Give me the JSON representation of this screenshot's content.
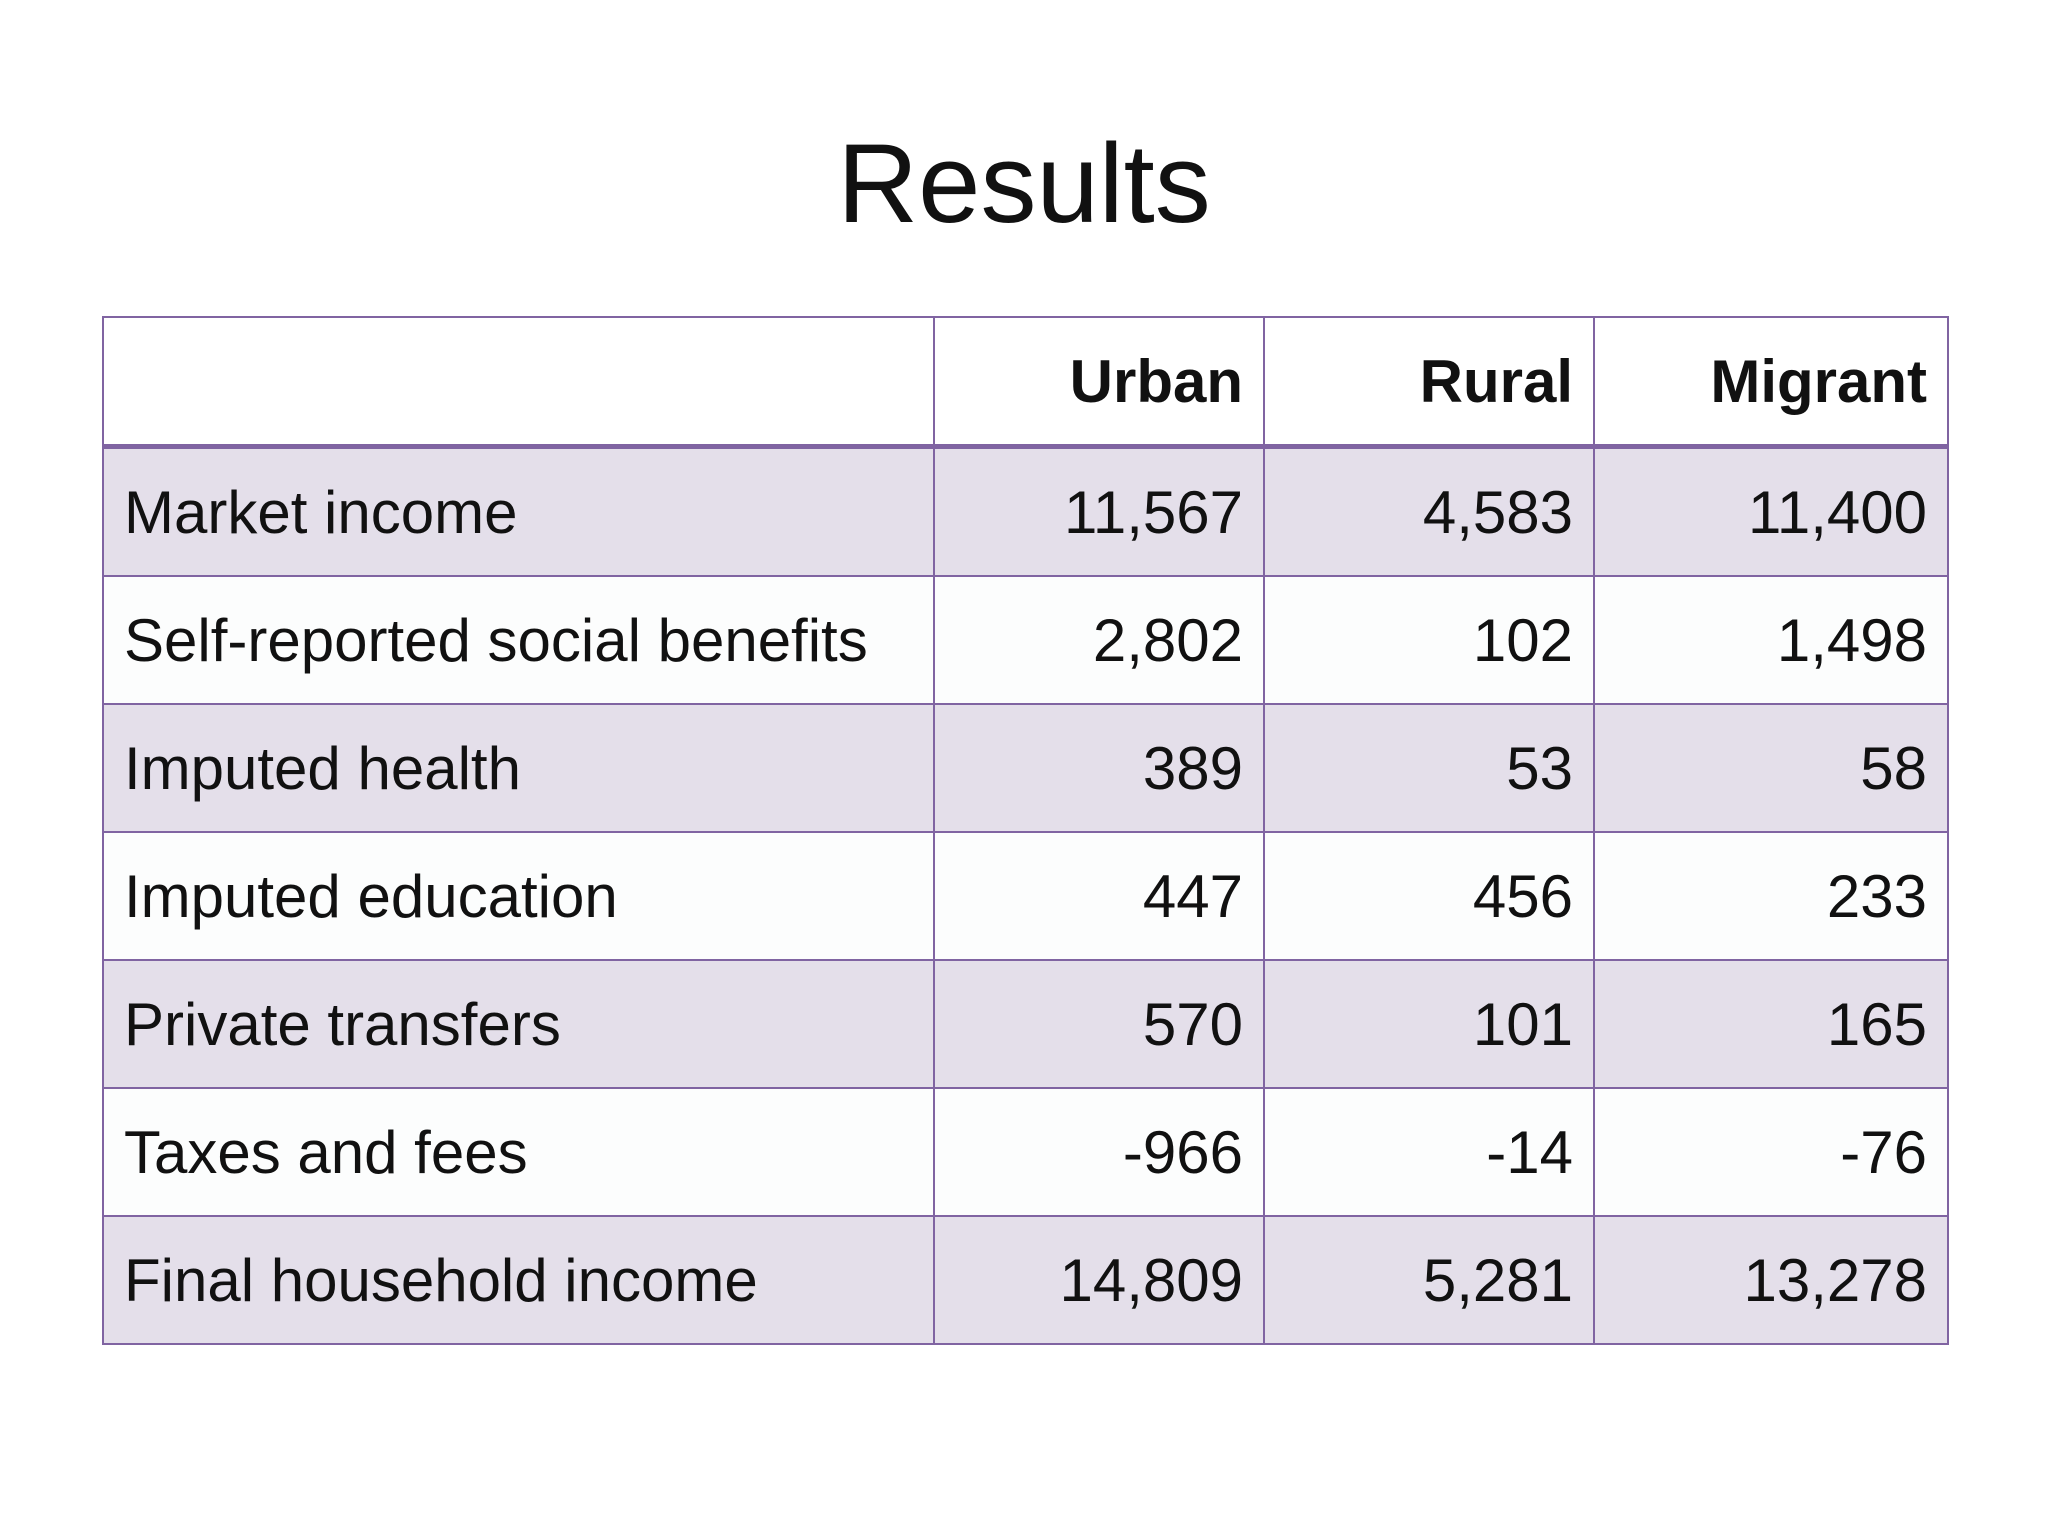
{
  "slide": {
    "title": "Results"
  },
  "table": {
    "headers": [
      "",
      "Urban",
      "Rural",
      "Migrant"
    ],
    "rows": [
      {
        "label": "Market income",
        "urban": "11,567",
        "rural": "4,583",
        "migrant": "11,400"
      },
      {
        "label": "Self-reported social benefits",
        "urban": "2,802",
        "rural": "102",
        "migrant": "1,498"
      },
      {
        "label": "Imputed health",
        "urban": "389",
        "rural": "53",
        "migrant": "58"
      },
      {
        "label": "Imputed education",
        "urban": "447",
        "rural": "456",
        "migrant": "233"
      },
      {
        "label": "Private transfers",
        "urban": "570",
        "rural": "101",
        "migrant": "165"
      },
      {
        "label": "Taxes and fees",
        "urban": "-966",
        "rural": "-14",
        "migrant": "-76"
      },
      {
        "label": "Final household income",
        "urban": "14,809",
        "rural": "5,281",
        "migrant": "13,278"
      }
    ]
  },
  "colors": {
    "border": "#8064a2",
    "band_shaded": "#e4dfea",
    "band_light": "#fcfdfd"
  }
}
